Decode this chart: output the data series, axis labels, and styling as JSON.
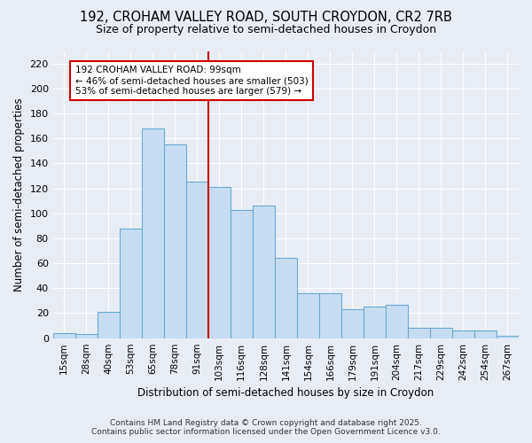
{
  "title_line1": "192, CROHAM VALLEY ROAD, SOUTH CROYDON, CR2 7RB",
  "title_line2": "Size of property relative to semi-detached houses in Croydon",
  "xlabel": "Distribution of semi-detached houses by size in Croydon",
  "ylabel": "Number of semi-detached properties",
  "categories": [
    "15sqm",
    "28sqm",
    "40sqm",
    "53sqm",
    "65sqm",
    "78sqm",
    "91sqm",
    "103sqm",
    "116sqm",
    "128sqm",
    "141sqm",
    "154sqm",
    "166sqm",
    "179sqm",
    "191sqm",
    "204sqm",
    "217sqm",
    "229sqm",
    "242sqm",
    "254sqm",
    "267sqm"
  ],
  "values": [
    4,
    3,
    21,
    88,
    168,
    155,
    125,
    121,
    103,
    106,
    64,
    36,
    36,
    23,
    25,
    27,
    8,
    8,
    6,
    6,
    2
  ],
  "bar_color": "#c9ddf2",
  "bar_edge_color": "#6aaad4",
  "bg_color": "#e8edf5",
  "grid_color": "#ffffff",
  "vline_color": "#cc0000",
  "annotation_title": "192 CROHAM VALLEY ROAD: 99sqm",
  "annotation_line2": "← 46% of semi-detached houses are smaller (503)",
  "annotation_line3": "53% of semi-detached houses are larger (579) →",
  "annotation_box_color": "#ffffff",
  "annotation_box_edge": "#cc0000",
  "footer_line1": "Contains HM Land Registry data © Crown copyright and database right 2025.",
  "footer_line2": "Contains public sector information licensed under the Open Government Licence v3.0.",
  "ylim": [
    0,
    230
  ],
  "yticks": [
    0,
    20,
    40,
    60,
    80,
    100,
    120,
    140,
    160,
    180,
    200,
    220
  ]
}
